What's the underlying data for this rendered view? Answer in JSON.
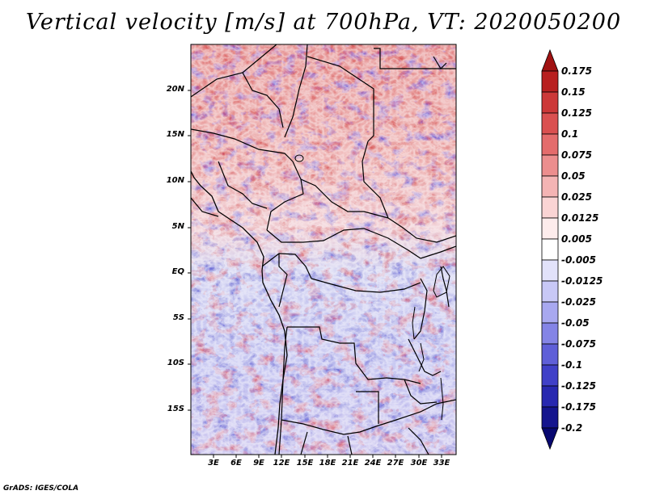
{
  "title": "Vertical velocity [m/s] at 700hPa, VT: 2020050200",
  "map": {
    "lat_labels": [
      "20N",
      "15N",
      "10N",
      "5N",
      "EQ",
      "5S",
      "10S",
      "15S"
    ],
    "lon_labels": [
      "3E",
      "6E",
      "9E",
      "12E",
      "15E",
      "18E",
      "21E",
      "24E",
      "27E",
      "30E",
      "33E"
    ],
    "lat_range": [
      -19,
      25
    ],
    "lon_range": [
      0,
      35
    ],
    "units": "m/s"
  },
  "colorbar": {
    "levels": [
      "0.175",
      "0.15",
      "0.125",
      "0.1",
      "0.075",
      "0.05",
      "0.025",
      "0.0125",
      "0.005",
      "-0.005",
      "-0.0125",
      "-0.025",
      "-0.05",
      "-0.075",
      "-0.1",
      "-0.125",
      "-0.175",
      "-0.2"
    ],
    "colors": [
      "#a01212",
      "#b82020",
      "#cc3838",
      "#da5050",
      "#e46c6c",
      "#ec8e8e",
      "#f4b4b4",
      "#fad4d4",
      "#fdecec",
      "#ffffff",
      "#e2e2fa",
      "#c8c8f6",
      "#a8a8f0",
      "#8484e6",
      "#5f5fd8",
      "#4040c8",
      "#2828b0",
      "#15158e",
      "#080870"
    ]
  },
  "credit": "GrADS: IGES/COLA"
}
